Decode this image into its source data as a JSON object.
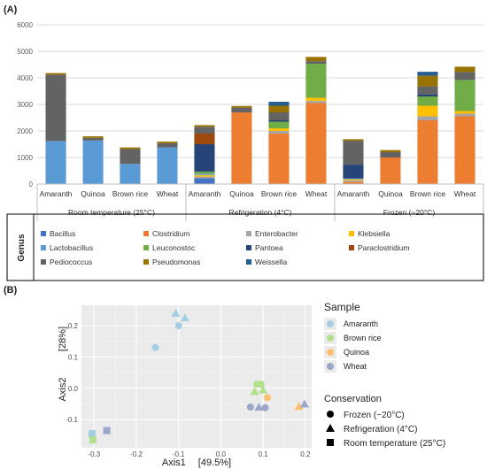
{
  "panel_labels": {
    "a": "(A)",
    "b": "(B)"
  },
  "chart_data": [
    {
      "type": "bar",
      "stacked": true,
      "ylim": [
        0,
        6000
      ],
      "yticks": [
        0,
        1000,
        2000,
        3000,
        4000,
        5000,
        6000
      ],
      "categories": [
        "Amaranth",
        "Quinoa",
        "Brown rice",
        "Wheat",
        "Amaranth",
        "Quinoa",
        "Brown rice",
        "Wheat",
        "Amaranth",
        "Quinoa",
        "Brown rice",
        "Wheat"
      ],
      "groups": [
        "Room temperature (25°C)",
        "Refrigeration (4°C)",
        "Frozen (−20°C)"
      ],
      "legend_title": "Genus",
      "series": [
        {
          "name": "Bacillus",
          "color": "#4472c4",
          "values": [
            0,
            0,
            0,
            0,
            220,
            0,
            0,
            0,
            0,
            0,
            0,
            0
          ]
        },
        {
          "name": "Clostridium",
          "color": "#ed7d31",
          "values": [
            0,
            0,
            0,
            0,
            0,
            2700,
            1900,
            3050,
            80,
            1000,
            2400,
            2550
          ]
        },
        {
          "name": "Enterobacter",
          "color": "#a5a5a5",
          "values": [
            0,
            0,
            0,
            0,
            60,
            0,
            100,
            80,
            60,
            0,
            150,
            100
          ]
        },
        {
          "name": "Klebsiella",
          "color": "#ffc000",
          "values": [
            0,
            0,
            0,
            0,
            60,
            0,
            100,
            120,
            40,
            0,
            400,
            100
          ]
        },
        {
          "name": "Lactobacillus",
          "color": "#5b9bd5",
          "values": [
            1620,
            1640,
            760,
            1380,
            50,
            0,
            0,
            0,
            30,
            0,
            0,
            0
          ]
        },
        {
          "name": "Leuconostoc",
          "color": "#70ad47",
          "values": [
            0,
            0,
            0,
            0,
            80,
            0,
            250,
            1280,
            0,
            0,
            350,
            1170
          ]
        },
        {
          "name": "Pantoea",
          "color": "#264478",
          "values": [
            0,
            0,
            0,
            0,
            1030,
            0,
            50,
            0,
            520,
            0,
            80,
            0
          ]
        },
        {
          "name": "Paraclostridium",
          "color": "#9e480e",
          "values": [
            0,
            0,
            0,
            0,
            400,
            0,
            0,
            0,
            0,
            0,
            0,
            0
          ]
        },
        {
          "name": "Pediococcus",
          "color": "#636363",
          "values": [
            2500,
            100,
            560,
            160,
            260,
            180,
            300,
            100,
            900,
            200,
            300,
            300
          ]
        },
        {
          "name": "Pseudomonas",
          "color": "#997300",
          "values": [
            60,
            60,
            60,
            60,
            60,
            60,
            250,
            160,
            60,
            80,
            400,
            200
          ]
        },
        {
          "name": "Weissella",
          "color": "#255e91",
          "values": [
            0,
            0,
            0,
            0,
            0,
            0,
            150,
            0,
            0,
            0,
            150,
            0
          ]
        }
      ]
    },
    {
      "type": "scatter",
      "xlabel": "Axis1",
      "xlabel_pct": "[49.5%]",
      "ylabel": "Axis2",
      "ylabel_pct": "[28%]",
      "xlim": [
        -0.33,
        0.215
      ],
      "ylim": [
        -0.19,
        0.265
      ],
      "xticks": [
        -0.3,
        -0.2,
        -0.1,
        0.0,
        0.1,
        0.2
      ],
      "xtick_labels": [
        "-0.3",
        "-0.2",
        "-0.1",
        "0.0",
        "0.1",
        "0.2"
      ],
      "yticks": [
        -0.1,
        0.0,
        0.1,
        0.2
      ],
      "ytick_labels": [
        "-0.1",
        "0.0",
        "0.1",
        "0.2"
      ],
      "grid": true,
      "legend_sample_title": "Sample",
      "samples": [
        {
          "name": "Amaranth",
          "color": "#a6cee3"
        },
        {
          "name": "Brown rice",
          "color": "#b2df8a"
        },
        {
          "name": "Quinoa",
          "color": "#fdbf6f"
        },
        {
          "name": "Wheat",
          "color": "#9aa7c8"
        }
      ],
      "legend_conservation_title": "Conservation",
      "conservation": [
        {
          "name": "Frozen (−20°C)",
          "shape": "circle"
        },
        {
          "name": "Refrigeration (4°C)",
          "shape": "triangle"
        },
        {
          "name": "Room temperature (25°C)",
          "shape": "square"
        }
      ],
      "points": [
        {
          "x": -0.155,
          "y": 0.13,
          "sample": "Amaranth",
          "shape": "circle"
        },
        {
          "x": -0.1,
          "y": 0.2,
          "sample": "Amaranth",
          "shape": "circle"
        },
        {
          "x": -0.107,
          "y": 0.24,
          "sample": "Amaranth",
          "shape": "triangle"
        },
        {
          "x": -0.085,
          "y": 0.225,
          "sample": "Amaranth",
          "shape": "triangle"
        },
        {
          "x": -0.305,
          "y": -0.145,
          "sample": "Amaranth",
          "shape": "square"
        },
        {
          "x": 0.085,
          "y": 0.013,
          "sample": "Brown rice",
          "shape": "circle"
        },
        {
          "x": 0.095,
          "y": 0.013,
          "sample": "Brown rice",
          "shape": "circle"
        },
        {
          "x": 0.08,
          "y": -0.01,
          "sample": "Brown rice",
          "shape": "triangle"
        },
        {
          "x": 0.1,
          "y": -0.005,
          "sample": "Brown rice",
          "shape": "triangle"
        },
        {
          "x": -0.303,
          "y": -0.165,
          "sample": "Brown rice",
          "shape": "square"
        },
        {
          "x": 0.11,
          "y": -0.03,
          "sample": "Quinoa",
          "shape": "circle"
        },
        {
          "x": 0.185,
          "y": -0.058,
          "sample": "Quinoa",
          "shape": "triangle"
        },
        {
          "x": 0.07,
          "y": -0.06,
          "sample": "Wheat",
          "shape": "circle"
        },
        {
          "x": 0.105,
          "y": -0.062,
          "sample": "Wheat",
          "shape": "circle"
        },
        {
          "x": 0.09,
          "y": -0.06,
          "sample": "Wheat",
          "shape": "triangle"
        },
        {
          "x": 0.198,
          "y": -0.05,
          "sample": "Wheat",
          "shape": "triangle"
        },
        {
          "x": -0.27,
          "y": -0.135,
          "sample": "Wheat",
          "shape": "square"
        }
      ]
    }
  ]
}
